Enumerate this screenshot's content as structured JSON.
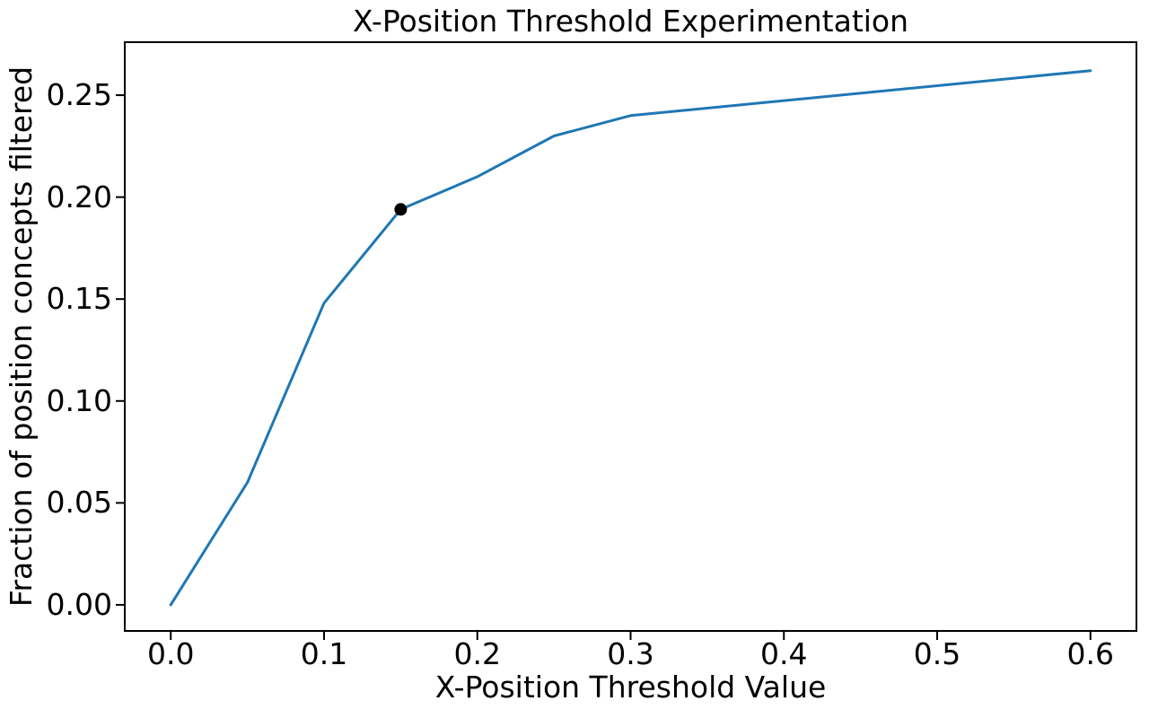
{
  "chart_data": {
    "type": "line",
    "title": "X-Position Threshold Experimentation",
    "xlabel": "X-Position Threshold Value",
    "ylabel": "Fraction of position concepts filtered",
    "x": [
      0.0,
      0.05,
      0.1,
      0.15,
      0.2,
      0.25,
      0.3,
      0.6
    ],
    "y": [
      0.0,
      0.06,
      0.148,
      0.194,
      0.21,
      0.23,
      0.24,
      0.262
    ],
    "x_tick_labels": [
      "0.0",
      "0.1",
      "0.2",
      "0.3",
      "0.4",
      "0.5",
      "0.6"
    ],
    "y_tick_labels": [
      "0.00",
      "0.05",
      "0.10",
      "0.15",
      "0.20",
      "0.25"
    ],
    "x_tick_values": [
      0.0,
      0.1,
      0.2,
      0.3,
      0.4,
      0.5,
      0.6
    ],
    "y_tick_values": [
      0.0,
      0.05,
      0.1,
      0.15,
      0.2,
      0.25
    ],
    "xlim": [
      -0.03,
      0.63
    ],
    "ylim": [
      -0.0128,
      0.276
    ],
    "grid": false,
    "legend": null,
    "line_color": "#1f77b4",
    "marker_point": {
      "x": 0.15,
      "y": 0.194,
      "color": "#000000"
    },
    "spine_color": "#000000",
    "text_color": "#000000",
    "background_color": "#ffffff"
  }
}
